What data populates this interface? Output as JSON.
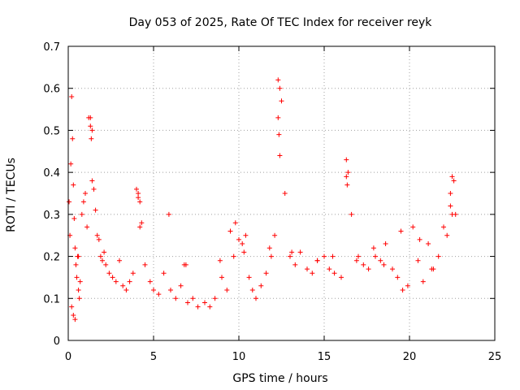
{
  "chart_data": {
    "type": "scatter",
    "title": "Day 053 of 2025, Rate Of TEC Index for receiver reyk",
    "xlabel": "GPS time / hours",
    "ylabel": "ROTI / TECUs",
    "xlim": [
      0,
      25
    ],
    "ylim": [
      0,
      0.7
    ],
    "xticks": [
      0,
      5,
      10,
      15,
      20,
      25
    ],
    "yticks": [
      0,
      0.1,
      0.2,
      0.3,
      0.4,
      0.5,
      0.6,
      0.7
    ],
    "grid": true,
    "marker": "plus",
    "color": "#ff0000",
    "series": [
      {
        "name": "ROTI",
        "x": [
          0.05,
          0.1,
          0.15,
          0.2,
          0.25,
          0.3,
          0.35,
          0.4,
          0.45,
          0.5,
          0.55,
          0.6,
          0.65,
          0.7,
          0.8,
          0.9,
          1.0,
          1.1,
          1.2,
          1.3,
          1.35,
          1.4,
          1.5,
          1.6,
          1.7,
          1.8,
          1.9,
          2.0,
          2.2,
          2.4,
          2.6,
          2.8,
          3.0,
          3.2,
          3.4,
          3.6,
          3.8,
          4.0,
          4.1,
          4.2,
          4.3,
          4.5,
          4.8,
          5.0,
          5.3,
          5.6,
          6.0,
          6.3,
          6.6,
          6.8,
          7.0,
          7.3,
          7.6,
          8.0,
          8.3,
          8.6,
          9.0,
          9.3,
          9.5,
          9.8,
          10.0,
          10.2,
          10.4,
          10.6,
          10.8,
          11.0,
          11.3,
          11.6,
          11.9,
          12.1,
          12.3,
          12.4,
          12.5,
          12.7,
          13.0,
          13.3,
          13.6,
          14.0,
          14.3,
          14.6,
          15.0,
          15.3,
          15.6,
          16.0,
          16.3,
          16.4,
          16.6,
          17.0,
          17.3,
          17.6,
          18.0,
          18.3,
          18.6,
          19.0,
          19.3,
          19.6,
          19.9,
          20.2,
          20.5,
          20.8,
          21.1,
          21.4,
          21.7,
          22.0,
          22.2,
          22.4,
          22.5,
          22.6,
          22.7,
          0.2,
          0.3,
          0.4,
          1.3,
          1.4,
          4.1,
          4.2,
          12.3,
          12.35,
          12.4,
          16.3,
          16.35,
          22.4,
          22.5,
          19.5,
          20.6,
          17.9,
          9.7,
          10.3,
          8.9,
          11.8,
          13.1,
          14.6,
          15.5,
          16.9,
          18.5,
          21.3,
          2.1,
          0.6,
          5.9,
          6.9
        ],
        "y": [
          0.33,
          0.25,
          0.42,
          0.58,
          0.48,
          0.37,
          0.29,
          0.22,
          0.18,
          0.15,
          0.2,
          0.12,
          0.1,
          0.14,
          0.3,
          0.33,
          0.35,
          0.27,
          0.53,
          0.51,
          0.48,
          0.38,
          0.36,
          0.31,
          0.25,
          0.24,
          0.2,
          0.19,
          0.18,
          0.16,
          0.15,
          0.14,
          0.19,
          0.13,
          0.12,
          0.14,
          0.16,
          0.36,
          0.34,
          0.27,
          0.28,
          0.18,
          0.14,
          0.12,
          0.11,
          0.16,
          0.12,
          0.1,
          0.13,
          0.18,
          0.09,
          0.1,
          0.08,
          0.09,
          0.08,
          0.1,
          0.15,
          0.12,
          0.26,
          0.28,
          0.24,
          0.23,
          0.25,
          0.15,
          0.12,
          0.1,
          0.13,
          0.16,
          0.2,
          0.25,
          0.62,
          0.6,
          0.57,
          0.35,
          0.2,
          0.18,
          0.21,
          0.17,
          0.16,
          0.19,
          0.2,
          0.17,
          0.16,
          0.15,
          0.43,
          0.4,
          0.3,
          0.2,
          0.18,
          0.17,
          0.2,
          0.19,
          0.23,
          0.17,
          0.15,
          0.12,
          0.13,
          0.27,
          0.19,
          0.14,
          0.23,
          0.17,
          0.2,
          0.27,
          0.25,
          0.35,
          0.39,
          0.38,
          0.3,
          0.08,
          0.06,
          0.05,
          0.53,
          0.5,
          0.35,
          0.33,
          0.53,
          0.49,
          0.44,
          0.39,
          0.37,
          0.32,
          0.3,
          0.26,
          0.24,
          0.22,
          0.2,
          0.21,
          0.19,
          0.22,
          0.21,
          0.19,
          0.2,
          0.19,
          0.18,
          0.17,
          0.21,
          0.2,
          0.3,
          0.18
        ]
      }
    ]
  }
}
